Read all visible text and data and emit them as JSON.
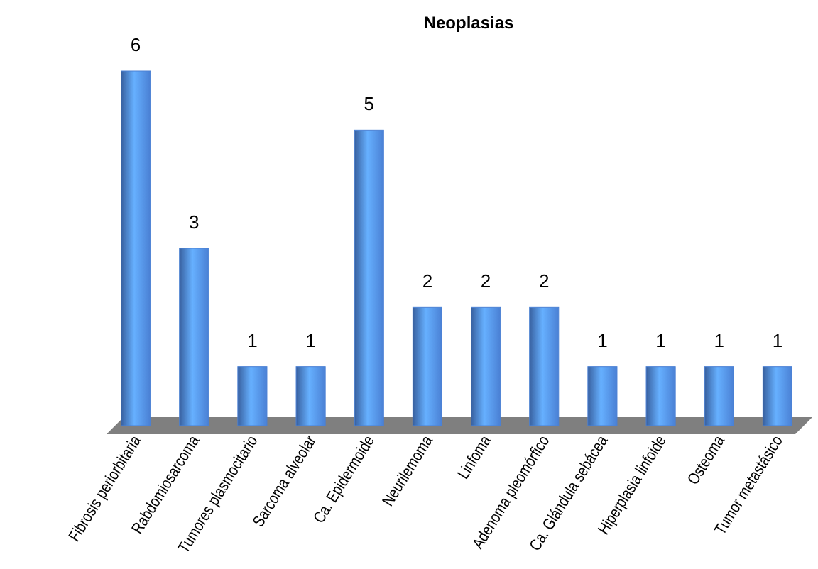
{
  "chart_data": {
    "type": "bar",
    "title": "Neoplasias",
    "categories": [
      "Fibrosis periorbitaria",
      "Rabdomiosarcoma",
      "Tumores plasmocitario",
      "Sarcoma alveolar",
      "Ca. Epidermoide",
      "Neurilemoma",
      "Linfoma",
      "Adenoma pleomórfico",
      "Ca. Glándula sebácea",
      "Hiperplasia linfoide",
      "Osteoma",
      "Tumor metastásico"
    ],
    "values": [
      6,
      3,
      1,
      1,
      5,
      2,
      2,
      2,
      1,
      1,
      1,
      1
    ],
    "color": "#4a80d4",
    "data_labels": true
  }
}
